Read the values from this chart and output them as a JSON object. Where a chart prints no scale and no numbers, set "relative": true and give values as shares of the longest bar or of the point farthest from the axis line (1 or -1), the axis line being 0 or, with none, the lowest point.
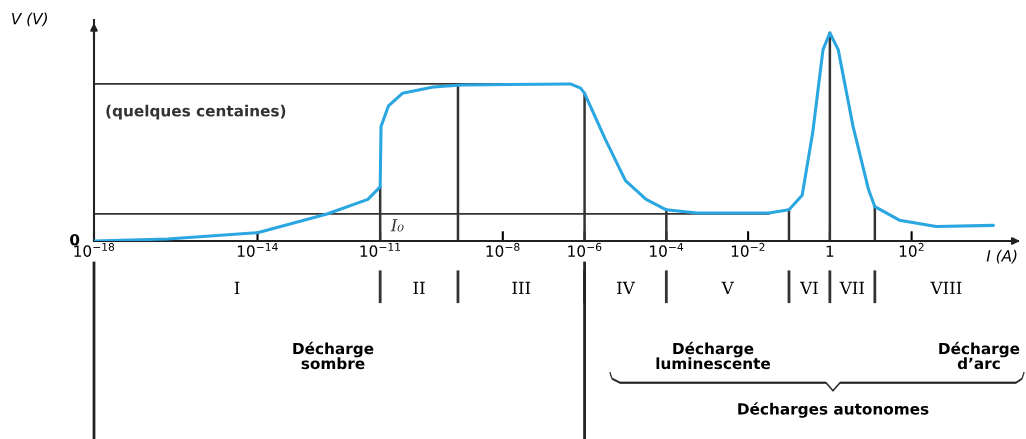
{
  "chart_data": {
    "type": "line",
    "relative": true,
    "log": "x",
    "ylabel": "V (V)",
    "xlabel": "I (A)",
    "xlim": [
      1e-18,
      40000.0
    ],
    "xticks": [
      {
        "value": 1e-18,
        "label": "10$^{−18}$"
      },
      {
        "value": 1e-14,
        "label": "10$^{−14}$"
      },
      {
        "value": 1e-11,
        "label": "10$^{−11}$"
      },
      {
        "value": 1e-08,
        "label": "10$^{−8}$"
      },
      {
        "value": 1e-06,
        "label": "10$^{−6}$"
      },
      {
        "value": 0.0001,
        "label": "10$^{−4}$"
      },
      {
        "value": 0.01,
        "label": "10$^{−2}$"
      },
      1,
      {
        "value": 100,
        "label": "10$^{2}$"
      }
    ],
    "series": [
      {
        "color": "#2aa6e0",
        "x": [
          1e-18,
          6.3e-17,
          1e-14,
          5e-13,
          5e-12,
          1e-11,
          1.05e-11,
          1.6e-11,
          3.5e-11,
          2e-10,
          1e-09,
          4.5e-07,
          8e-07,
          1e-06,
          3.2e-06,
          1e-05,
          3.2e-05,
          0.0001,
          0.00056,
          0.032,
          0.1,
          0.21,
          0.38,
          0.68,
          1,
          1.6,
          3.7,
          8.9,
          12.6,
          50,
          400,
          10000.0
        ],
        "values": [
          0,
          0.01,
          0.04,
          0.13,
          0.2,
          0.26,
          0.55,
          0.65,
          0.71,
          0.74,
          0.75,
          0.755,
          0.735,
          0.71,
          0.49,
          0.29,
          0.2,
          0.15,
          0.135,
          0.135,
          0.15,
          0.22,
          0.52,
          0.92,
          1.0,
          0.92,
          0.55,
          0.245,
          0.165,
          0.1,
          0.07,
          0.075
        ]
      }
    ],
    "ref_lines": [
      {
        "axis": "y",
        "value": 0.755,
        "label": "(quelques centaines)",
        "color": "#333333"
      },
      {
        "axis": "y",
        "value": 0.13,
        "color": "#333333"
      },
      {
        "axis": "x",
        "value": 1e-11,
        "label": "I₀",
        "color": "#333333"
      },
      {
        "axis": "x",
        "value": 8e-10,
        "color": "#333333"
      },
      {
        "axis": "x",
        "value": 1e-06,
        "color": "#333333"
      },
      {
        "axis": "x",
        "value": 0.0001,
        "color": "#333333"
      },
      {
        "axis": "x",
        "value": 0.1,
        "color": "#333333"
      },
      {
        "axis": "x",
        "value": 1,
        "color": "#333333"
      },
      {
        "axis": "x",
        "value": 12.6,
        "color": "#333333"
      }
    ],
    "annotations": [
      "0",
      "I",
      "II",
      "III",
      "IV",
      "V",
      "VI",
      "VII",
      "VIII",
      "Décharge\nsombre",
      "Décharge\nluminescente",
      "Décharge\nd’arc",
      "Décharges autonomes"
    ]
  }
}
